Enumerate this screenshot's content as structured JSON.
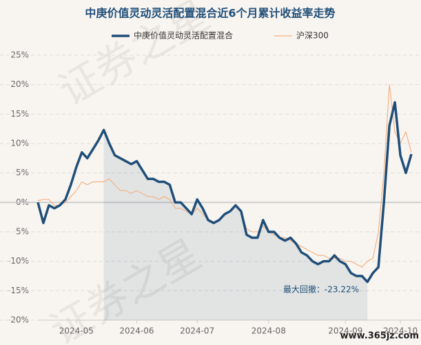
{
  "chart_data": {
    "type": "line",
    "title": "中庚价值灵动灵活配置混合近6个月累计收益率走势",
    "categories": [
      null,
      null,
      null,
      null,
      null,
      null,
      null,
      "2024-05",
      null,
      null,
      null,
      null,
      null,
      null,
      null,
      null,
      null,
      null,
      "2024-06",
      null,
      null,
      null,
      null,
      null,
      null,
      null,
      null,
      null,
      null,
      "2024-07",
      null,
      null,
      null,
      null,
      null,
      null,
      null,
      null,
      null,
      null,
      null,
      null,
      "2024-08",
      null,
      null,
      null,
      null,
      null,
      null,
      null,
      null,
      null,
      null,
      null,
      null,
      null,
      "2024-09",
      null,
      null,
      null,
      null,
      null,
      null,
      null,
      null,
      null,
      "2024-10",
      null,
      null
    ],
    "series": [
      {
        "name": "中庚价值灵动灵活配置混合",
        "color": "#1f4e79",
        "values": [
          0,
          -3.5,
          -0.5,
          -1,
          -0.5,
          0.5,
          3,
          6,
          8.5,
          7.5,
          9,
          10.5,
          12.3,
          10,
          8,
          7.5,
          7,
          6.5,
          7,
          5.5,
          4,
          4,
          3.5,
          3.5,
          3,
          0,
          0,
          -1,
          -2,
          0.5,
          -1,
          -3,
          -3.5,
          -3,
          -2,
          -1.5,
          -0.5,
          -1.5,
          -5.5,
          -6,
          -6,
          -3,
          -5,
          -5,
          -6,
          -6.5,
          -6,
          -7,
          -8.5,
          -9,
          -10,
          -10.5,
          -10,
          -10,
          -9,
          -10,
          -10.5,
          -12,
          -12.5,
          -12.5,
          -13.5,
          -12,
          -11,
          0,
          13,
          17,
          8,
          5,
          8.2
        ]
      },
      {
        "name": "沪深300",
        "color": "#f4b183",
        "values": [
          0.3,
          0.5,
          0.5,
          -0.5,
          -0.5,
          0,
          1,
          2,
          3.5,
          3,
          3.5,
          3.5,
          3.5,
          4,
          3,
          2,
          2,
          1.5,
          2,
          1.5,
          1,
          1,
          0.5,
          1,
          0.5,
          -1,
          -1,
          -1.5,
          -2,
          -1,
          -2,
          -3,
          -3.5,
          -3,
          -2,
          -1.5,
          -0.5,
          -1.5,
          -4.5,
          -5,
          -5,
          -4,
          -5,
          -5.5,
          -6,
          -6,
          -6.5,
          -7,
          -7.5,
          -8,
          -8.5,
          -9,
          -9,
          -9.5,
          -9.5,
          -9.5,
          -10,
          -10,
          -10.5,
          -11,
          -10,
          -9.5,
          -5,
          5,
          20,
          12,
          10,
          12,
          8.5
        ]
      }
    ],
    "ylim": [
      -20,
      25
    ],
    "yticks": [
      {
        "value": -20,
        "label": "-20%"
      },
      {
        "value": -15,
        "label": "-15%"
      },
      {
        "value": -10,
        "label": "-10%"
      },
      {
        "value": -5,
        "label": "-5%"
      },
      {
        "value": 0,
        "label": "0%"
      },
      {
        "value": 5,
        "label": "5%"
      },
      {
        "value": 10,
        "label": "10%"
      },
      {
        "value": 15,
        "label": "15%"
      },
      {
        "value": 20,
        "label": "20%"
      },
      {
        "value": 25,
        "label": "25%"
      }
    ],
    "grid": true,
    "annotation": "最大回撤：-23.22%",
    "watermark": "证券之星",
    "site_label": "www.365jz.com"
  }
}
